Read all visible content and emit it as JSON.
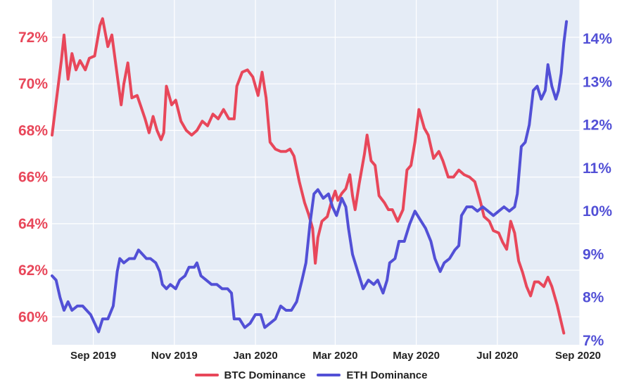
{
  "chart_data": {
    "type": "line",
    "title": "",
    "xlabel": "",
    "x_tick_labels": [
      "Sep 2019",
      "Nov 2019",
      "Jan 2020",
      "Mar 2020",
      "May 2020",
      "Jul 2020",
      "Sep 2020"
    ],
    "x_range": [
      "2019-08-01",
      "2020-09-01"
    ],
    "grid": true,
    "legend_position": "bottom-center",
    "left_axis": {
      "series": "BTC Dominance",
      "unit": "%",
      "range": [
        58.8,
        73.6
      ],
      "ticks": [
        60,
        62,
        64,
        66,
        68,
        70,
        72
      ],
      "tick_labels": [
        "60%",
        "62%",
        "64%",
        "66%",
        "68%",
        "70%",
        "72%"
      ]
    },
    "right_axis": {
      "series": "ETH Dominance",
      "unit": "%",
      "range": [
        6.9,
        14.9
      ],
      "ticks": [
        7,
        8,
        9,
        10,
        11,
        12,
        13,
        14
      ],
      "tick_labels": [
        "7%",
        "8%",
        "9%",
        "10%",
        "11%",
        "12%",
        "13%",
        "14%"
      ]
    },
    "series": [
      {
        "name": "BTC Dominance",
        "axis": "left",
        "color": "#e8475a",
        "points": [
          [
            "2019-08-01",
            67.8
          ],
          [
            "2019-08-04",
            69.2
          ],
          [
            "2019-08-08",
            71.0
          ],
          [
            "2019-08-10",
            72.1
          ],
          [
            "2019-08-13",
            70.2
          ],
          [
            "2019-08-16",
            71.3
          ],
          [
            "2019-08-19",
            70.6
          ],
          [
            "2019-08-22",
            71.0
          ],
          [
            "2019-08-26",
            70.6
          ],
          [
            "2019-08-29",
            71.1
          ],
          [
            "2019-09-02",
            71.2
          ],
          [
            "2019-09-06",
            72.5
          ],
          [
            "2019-09-08",
            72.8
          ],
          [
            "2019-09-12",
            71.6
          ],
          [
            "2019-09-15",
            72.1
          ],
          [
            "2019-09-18",
            70.8
          ],
          [
            "2019-09-22",
            69.1
          ],
          [
            "2019-09-24",
            70.0
          ],
          [
            "2019-09-27",
            70.9
          ],
          [
            "2019-09-30",
            69.4
          ],
          [
            "2019-10-04",
            69.5
          ],
          [
            "2019-10-07",
            69.0
          ],
          [
            "2019-10-10",
            68.5
          ],
          [
            "2019-10-13",
            67.9
          ],
          [
            "2019-10-16",
            68.6
          ],
          [
            "2019-10-19",
            68.0
          ],
          [
            "2019-10-22",
            67.6
          ],
          [
            "2019-10-24",
            67.9
          ],
          [
            "2019-10-26",
            69.9
          ],
          [
            "2019-10-30",
            69.1
          ],
          [
            "2019-11-02",
            69.3
          ],
          [
            "2019-11-06",
            68.4
          ],
          [
            "2019-11-10",
            68.0
          ],
          [
            "2019-11-14",
            67.8
          ],
          [
            "2019-11-18",
            68.0
          ],
          [
            "2019-11-22",
            68.4
          ],
          [
            "2019-11-26",
            68.2
          ],
          [
            "2019-11-30",
            68.7
          ],
          [
            "2019-12-04",
            68.5
          ],
          [
            "2019-12-08",
            68.9
          ],
          [
            "2019-12-12",
            68.5
          ],
          [
            "2019-12-16",
            68.5
          ],
          [
            "2019-12-18",
            69.9
          ],
          [
            "2019-12-22",
            70.5
          ],
          [
            "2019-12-26",
            70.6
          ],
          [
            "2019-12-30",
            70.3
          ],
          [
            "2020-01-03",
            69.5
          ],
          [
            "2020-01-06",
            70.5
          ],
          [
            "2020-01-09",
            69.4
          ],
          [
            "2020-01-12",
            67.5
          ],
          [
            "2020-01-16",
            67.2
          ],
          [
            "2020-01-20",
            67.1
          ],
          [
            "2020-01-24",
            67.1
          ],
          [
            "2020-01-27",
            67.2
          ],
          [
            "2020-01-30",
            66.9
          ],
          [
            "2020-02-03",
            65.8
          ],
          [
            "2020-02-07",
            64.9
          ],
          [
            "2020-02-10",
            64.4
          ],
          [
            "2020-02-13",
            63.8
          ],
          [
            "2020-02-15",
            62.3
          ],
          [
            "2020-02-17",
            63.4
          ],
          [
            "2020-02-20",
            64.1
          ],
          [
            "2020-02-24",
            64.3
          ],
          [
            "2020-02-27",
            64.9
          ],
          [
            "2020-03-01",
            65.4
          ],
          [
            "2020-03-03",
            65.0
          ],
          [
            "2020-03-06",
            65.3
          ],
          [
            "2020-03-09",
            65.5
          ],
          [
            "2020-03-12",
            66.1
          ],
          [
            "2020-03-14",
            65.2
          ],
          [
            "2020-03-16",
            64.6
          ],
          [
            "2020-03-19",
            65.7
          ],
          [
            "2020-03-23",
            67.0
          ],
          [
            "2020-03-25",
            67.8
          ],
          [
            "2020-03-28",
            66.7
          ],
          [
            "2020-03-31",
            66.5
          ],
          [
            "2020-04-03",
            65.2
          ],
          [
            "2020-04-07",
            64.9
          ],
          [
            "2020-04-10",
            64.6
          ],
          [
            "2020-04-13",
            64.6
          ],
          [
            "2020-04-17",
            64.1
          ],
          [
            "2020-04-21",
            64.6
          ],
          [
            "2020-04-24",
            66.3
          ],
          [
            "2020-04-27",
            66.5
          ],
          [
            "2020-04-30",
            67.5
          ],
          [
            "2020-05-03",
            68.9
          ],
          [
            "2020-05-07",
            68.1
          ],
          [
            "2020-05-10",
            67.8
          ],
          [
            "2020-05-14",
            66.8
          ],
          [
            "2020-05-18",
            67.1
          ],
          [
            "2020-05-21",
            66.7
          ],
          [
            "2020-05-25",
            66.0
          ],
          [
            "2020-05-29",
            66.0
          ],
          [
            "2020-06-02",
            66.3
          ],
          [
            "2020-06-06",
            66.1
          ],
          [
            "2020-06-10",
            66.0
          ],
          [
            "2020-06-14",
            65.8
          ],
          [
            "2020-06-18",
            65.0
          ],
          [
            "2020-06-21",
            64.3
          ],
          [
            "2020-06-25",
            64.1
          ],
          [
            "2020-06-28",
            63.7
          ],
          [
            "2020-07-02",
            63.6
          ],
          [
            "2020-07-05",
            63.2
          ],
          [
            "2020-07-08",
            62.9
          ],
          [
            "2020-07-11",
            64.1
          ],
          [
            "2020-07-14",
            63.6
          ],
          [
            "2020-07-17",
            62.4
          ],
          [
            "2020-07-20",
            61.9
          ],
          [
            "2020-07-23",
            61.3
          ],
          [
            "2020-07-26",
            60.9
          ],
          [
            "2020-07-29",
            61.5
          ],
          [
            "2020-08-01",
            61.5
          ],
          [
            "2020-08-05",
            61.3
          ],
          [
            "2020-08-08",
            61.7
          ],
          [
            "2020-08-11",
            61.3
          ],
          [
            "2020-08-15",
            60.5
          ],
          [
            "2020-08-20",
            59.3
          ]
        ]
      },
      {
        "name": "ETH Dominance",
        "axis": "right",
        "color": "#5250d6",
        "points": [
          [
            "2019-08-01",
            8.5
          ],
          [
            "2019-08-04",
            8.4
          ],
          [
            "2019-08-07",
            8.0
          ],
          [
            "2019-08-10",
            7.7
          ],
          [
            "2019-08-13",
            7.9
          ],
          [
            "2019-08-16",
            7.7
          ],
          [
            "2019-08-20",
            7.8
          ],
          [
            "2019-08-24",
            7.8
          ],
          [
            "2019-08-27",
            7.7
          ],
          [
            "2019-08-30",
            7.6
          ],
          [
            "2019-09-02",
            7.4
          ],
          [
            "2019-09-05",
            7.2
          ],
          [
            "2019-09-08",
            7.5
          ],
          [
            "2019-09-12",
            7.5
          ],
          [
            "2019-09-16",
            7.8
          ],
          [
            "2019-09-19",
            8.6
          ],
          [
            "2019-09-21",
            8.9
          ],
          [
            "2019-09-24",
            8.8
          ],
          [
            "2019-09-28",
            8.9
          ],
          [
            "2019-10-02",
            8.9
          ],
          [
            "2019-10-05",
            9.1
          ],
          [
            "2019-10-08",
            9.0
          ],
          [
            "2019-10-11",
            8.9
          ],
          [
            "2019-10-14",
            8.9
          ],
          [
            "2019-10-18",
            8.8
          ],
          [
            "2019-10-21",
            8.6
          ],
          [
            "2019-10-23",
            8.3
          ],
          [
            "2019-10-26",
            8.2
          ],
          [
            "2019-10-29",
            8.3
          ],
          [
            "2019-11-02",
            8.2
          ],
          [
            "2019-11-05",
            8.4
          ],
          [
            "2019-11-09",
            8.5
          ],
          [
            "2019-11-12",
            8.7
          ],
          [
            "2019-11-16",
            8.7
          ],
          [
            "2019-11-18",
            8.8
          ],
          [
            "2019-11-21",
            8.5
          ],
          [
            "2019-11-25",
            8.4
          ],
          [
            "2019-11-29",
            8.3
          ],
          [
            "2019-12-03",
            8.3
          ],
          [
            "2019-12-07",
            8.2
          ],
          [
            "2019-12-11",
            8.2
          ],
          [
            "2019-12-14",
            8.1
          ],
          [
            "2019-12-16",
            7.5
          ],
          [
            "2019-12-20",
            7.5
          ],
          [
            "2019-12-24",
            7.3
          ],
          [
            "2019-12-28",
            7.4
          ],
          [
            "2020-01-01",
            7.6
          ],
          [
            "2020-01-05",
            7.6
          ],
          [
            "2020-01-08",
            7.3
          ],
          [
            "2020-01-12",
            7.4
          ],
          [
            "2020-01-16",
            7.5
          ],
          [
            "2020-01-20",
            7.8
          ],
          [
            "2020-01-24",
            7.7
          ],
          [
            "2020-01-28",
            7.7
          ],
          [
            "2020-02-01",
            7.9
          ],
          [
            "2020-02-05",
            8.4
          ],
          [
            "2020-02-08",
            8.8
          ],
          [
            "2020-02-11",
            9.7
          ],
          [
            "2020-02-14",
            10.4
          ],
          [
            "2020-02-17",
            10.5
          ],
          [
            "2020-02-21",
            10.3
          ],
          [
            "2020-02-25",
            10.4
          ],
          [
            "2020-02-28",
            10.1
          ],
          [
            "2020-03-02",
            9.9
          ],
          [
            "2020-03-06",
            10.3
          ],
          [
            "2020-03-09",
            10.1
          ],
          [
            "2020-03-11",
            9.6
          ],
          [
            "2020-03-14",
            9.0
          ],
          [
            "2020-03-18",
            8.6
          ],
          [
            "2020-03-22",
            8.2
          ],
          [
            "2020-03-26",
            8.4
          ],
          [
            "2020-03-30",
            8.3
          ],
          [
            "2020-04-02",
            8.4
          ],
          [
            "2020-04-06",
            8.1
          ],
          [
            "2020-04-09",
            8.4
          ],
          [
            "2020-04-11",
            8.8
          ],
          [
            "2020-04-15",
            8.9
          ],
          [
            "2020-04-18",
            9.3
          ],
          [
            "2020-04-22",
            9.3
          ],
          [
            "2020-04-26",
            9.7
          ],
          [
            "2020-04-30",
            10.0
          ],
          [
            "2020-05-04",
            9.8
          ],
          [
            "2020-05-08",
            9.6
          ],
          [
            "2020-05-12",
            9.3
          ],
          [
            "2020-05-15",
            8.9
          ],
          [
            "2020-05-19",
            8.6
          ],
          [
            "2020-05-22",
            8.8
          ],
          [
            "2020-05-26",
            8.9
          ],
          [
            "2020-05-30",
            9.1
          ],
          [
            "2020-06-02",
            9.2
          ],
          [
            "2020-06-04",
            9.9
          ],
          [
            "2020-06-08",
            10.1
          ],
          [
            "2020-06-12",
            10.1
          ],
          [
            "2020-06-16",
            10.0
          ],
          [
            "2020-06-20",
            10.1
          ],
          [
            "2020-06-24",
            10.0
          ],
          [
            "2020-06-28",
            9.9
          ],
          [
            "2020-07-02",
            10.0
          ],
          [
            "2020-07-06",
            10.1
          ],
          [
            "2020-07-10",
            10.0
          ],
          [
            "2020-07-14",
            10.1
          ],
          [
            "2020-07-16",
            10.4
          ],
          [
            "2020-07-19",
            11.5
          ],
          [
            "2020-07-22",
            11.6
          ],
          [
            "2020-07-25",
            12.0
          ],
          [
            "2020-07-28",
            12.8
          ],
          [
            "2020-07-31",
            12.9
          ],
          [
            "2020-08-03",
            12.6
          ],
          [
            "2020-08-06",
            12.8
          ],
          [
            "2020-08-08",
            13.4
          ],
          [
            "2020-08-11",
            12.9
          ],
          [
            "2020-08-14",
            12.6
          ],
          [
            "2020-08-16",
            12.8
          ],
          [
            "2020-08-18",
            13.2
          ],
          [
            "2020-08-20",
            13.9
          ],
          [
            "2020-08-22",
            14.4
          ]
        ]
      }
    ]
  },
  "legend": {
    "items": [
      {
        "label": "BTC Dominance",
        "color": "#e8475a"
      },
      {
        "label": "ETH Dominance",
        "color": "#5250d6"
      }
    ]
  },
  "colors": {
    "plot_bg": "#e5ecf6",
    "grid": "#ffffff",
    "left_tick": "#e8475a",
    "right_tick": "#5250d6"
  }
}
